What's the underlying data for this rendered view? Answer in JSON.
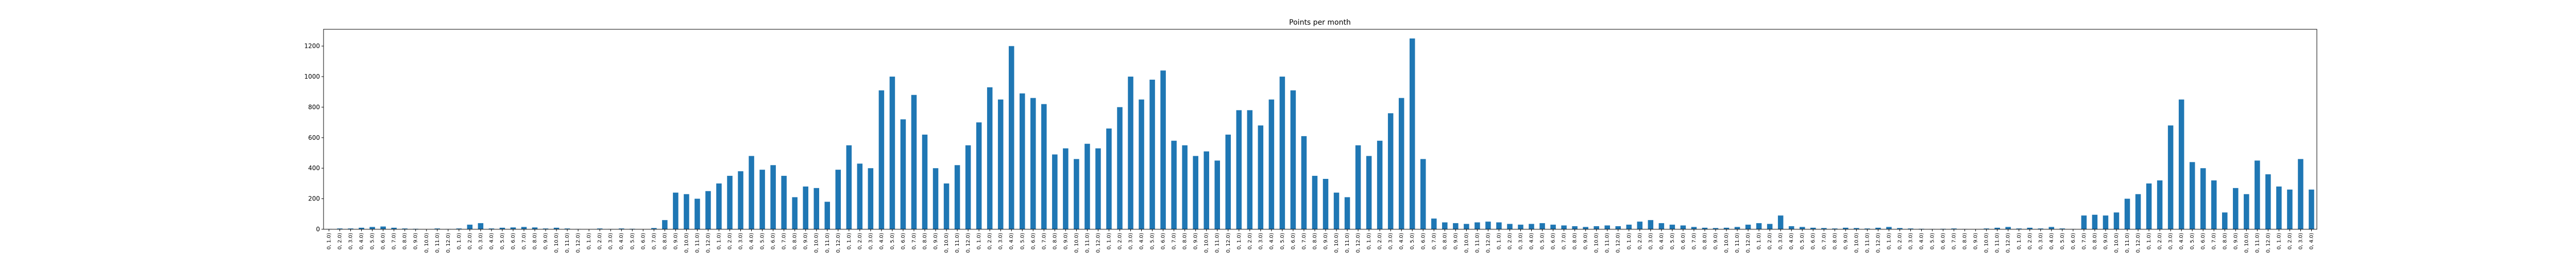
{
  "chart_data": {
    "type": "bar",
    "title": "Points per month",
    "color": "#1f77b4",
    "categories": [
      "0, 1.0)",
      "0, 2.0)",
      "0, 3.0)",
      "0, 4.0)",
      "0, 5.0)",
      "0, 6.0)",
      "0, 7.0)",
      "0, 8.0)",
      "0, 9.0)",
      "0, 10.0)",
      "0, 11.0)",
      "0, 12.0)",
      "0, 1.0)",
      "0, 2.0)",
      "0, 3.0)",
      "0, 4.0)",
      "0, 5.0)",
      "0, 6.0)",
      "0, 7.0)",
      "0, 8.0)",
      "0, 9.0)",
      "0, 10.0)",
      "0, 11.0)",
      "0, 12.0)",
      "0, 1.0)",
      "0, 2.0)",
      "0, 3.0)",
      "0, 4.0)",
      "0, 5.0)",
      "0, 6.0)",
      "0, 7.0)",
      "0, 8.0)",
      "0, 9.0)",
      "0, 10.0)",
      "0, 11.0)",
      "0, 12.0)",
      "0, 1.0)",
      "0, 2.0)",
      "0, 3.0)",
      "0, 4.0)",
      "0, 5.0)",
      "0, 6.0)",
      "0, 7.0)",
      "0, 8.0)",
      "0, 9.0)",
      "0, 10.0)",
      "0, 11.0)",
      "0, 12.0)",
      "0, 1.0)",
      "0, 2.0)",
      "0, 3.0)",
      "0, 4.0)",
      "0, 5.0)",
      "0, 6.0)",
      "0, 7.0)",
      "0, 8.0)",
      "0, 9.0)",
      "0, 10.0)",
      "0, 11.0)",
      "0, 12.0)",
      "0, 1.0)",
      "0, 2.0)",
      "0, 3.0)",
      "0, 4.0)",
      "0, 5.0)",
      "0, 6.0)",
      "0, 7.0)",
      "0, 8.0)",
      "0, 9.0)",
      "0, 10.0)",
      "0, 11.0)",
      "0, 12.0)",
      "0, 1.0)",
      "0, 2.0)",
      "0, 3.0)",
      "0, 4.0)",
      "0, 5.0)",
      "0, 6.0)",
      "0, 7.0)",
      "0, 8.0)",
      "0, 9.0)",
      "0, 10.0)",
      "0, 11.0)",
      "0, 12.0)",
      "0, 1.0)",
      "0, 2.0)",
      "0, 3.0)",
      "0, 4.0)",
      "0, 5.0)",
      "0, 6.0)",
      "0, 7.0)",
      "0, 8.0)",
      "0, 9.0)",
      "0, 10.0)",
      "0, 11.0)",
      "0, 12.0)",
      "0, 1.0)",
      "0, 2.0)",
      "0, 3.0)",
      "0, 4.0)",
      "0, 5.0)",
      "0, 6.0)",
      "0, 7.0)",
      "0, 8.0)",
      "0, 9.0)",
      "0, 10.0)",
      "0, 11.0)",
      "0, 12.0)",
      "0, 1.0)",
      "0, 2.0)",
      "0, 3.0)",
      "0, 4.0)",
      "0, 5.0)",
      "0, 6.0)",
      "0, 7.0)",
      "0, 8.0)",
      "0, 9.0)",
      "0, 10.0)",
      "0, 11.0)",
      "0, 12.0)",
      "0, 1.0)",
      "0, 2.0)",
      "0, 3.0)",
      "0, 4.0)",
      "0, 5.0)",
      "0, 6.0)",
      "0, 7.0)",
      "0, 8.0)",
      "0, 9.0)",
      "0, 10.0)",
      "0, 11.0)",
      "0, 12.0)",
      "0, 1.0)",
      "0, 2.0)",
      "0, 3.0)",
      "0, 4.0)",
      "0, 5.0)",
      "0, 6.0)",
      "0, 7.0)",
      "0, 8.0)",
      "0, 9.0)",
      "0, 10.0)",
      "0, 11.0)",
      "0, 12.0)",
      "0, 1.0)",
      "0, 2.0)",
      "0, 3.0)",
      "0, 4.0)",
      "0, 5.0)",
      "0, 6.0)",
      "0, 7.0)",
      "0, 8.0)",
      "0, 9.0)",
      "0, 10.0)",
      "0, 11.0)",
      "0, 12.0)",
      "0, 1.0)",
      "0, 2.0)",
      "0, 3.0)",
      "0, 4.0)",
      "0, 5.0)",
      "0, 6.0)",
      "0, 7.0)",
      "0, 8.0)",
      "0, 9.0)",
      "0, 10.0)",
      "0, 11.0)",
      "0, 12.0)",
      "0, 1.0)",
      "0, 2.0)",
      "0, 3.0)",
      "0, 4.0)",
      "0, 5.0)",
      "0, 6.0)",
      "0, 7.0)",
      "0, 8.0)",
      "0, 9.0)",
      "0, 10.0)",
      "0, 11.0)",
      "0, 12.0)",
      "0, 1.0)",
      "0, 2.0)",
      "0, 3.0)",
      "0, 4.0)"
    ],
    "values": [
      2,
      5,
      5,
      10,
      15,
      18,
      10,
      5,
      3,
      0,
      5,
      2,
      5,
      30,
      40,
      5,
      10,
      12,
      15,
      12,
      5,
      10,
      5,
      2,
      0,
      5,
      2,
      5,
      3,
      0,
      8,
      60,
      240,
      230,
      200,
      250,
      300,
      350,
      380,
      480,
      390,
      420,
      350,
      210,
      280,
      270,
      180,
      390,
      550,
      430,
      400,
      910,
      1000,
      720,
      880,
      620,
      400,
      300,
      420,
      550,
      700,
      930,
      850,
      1200,
      890,
      860,
      820,
      490,
      530,
      460,
      560,
      530,
      660,
      800,
      1000,
      850,
      980,
      1040,
      580,
      550,
      480,
      510,
      450,
      620,
      780,
      780,
      680,
      850,
      1000,
      910,
      610,
      350,
      330,
      240,
      210,
      550,
      480,
      580,
      760,
      860,
      1250,
      460,
      70,
      45,
      40,
      35,
      45,
      50,
      45,
      35,
      30,
      35,
      40,
      30,
      25,
      20,
      15,
      20,
      25,
      20,
      30,
      50,
      60,
      40,
      30,
      25,
      15,
      10,
      8,
      10,
      15,
      30,
      40,
      35,
      90,
      20,
      15,
      10,
      8,
      5,
      10,
      8,
      5,
      10,
      15,
      8,
      5,
      3,
      2,
      3,
      5,
      2,
      1,
      5,
      10,
      15,
      5,
      10,
      5,
      15,
      5,
      2,
      90,
      95,
      90,
      110,
      200,
      230,
      300,
      320,
      680,
      850,
      440,
      400,
      320,
      110,
      270,
      230,
      450,
      360,
      280,
      260,
      460,
      260
    ],
    "ylim": [
      0,
      1310
    ],
    "yticks": [
      0,
      200,
      400,
      600,
      800,
      1000,
      1200
    ]
  }
}
